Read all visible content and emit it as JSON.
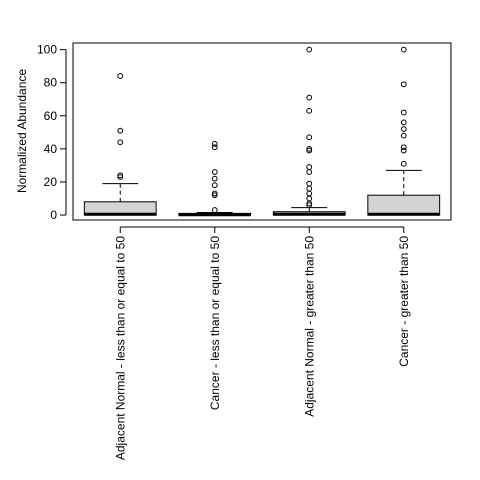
{
  "chart_data": {
    "type": "boxplot",
    "title": "",
    "xlabel": "",
    "ylabel": "Normalized Abundance",
    "ylim": [
      -3,
      104
    ],
    "yticks": [
      0,
      20,
      40,
      60,
      80,
      100
    ],
    "grid": false,
    "categories": [
      "Adjacent Normal - less than or equal to 50",
      "Cancer - less than or equal to 50",
      "Adjacent Normal - greater than 50",
      "Cancer - greater than 50"
    ],
    "boxes": [
      {
        "min": 0,
        "q1": 0,
        "median": 0.5,
        "q3": 8,
        "max": 19,
        "outliers": [
          84,
          51,
          44,
          24,
          23
        ]
      },
      {
        "min": 0,
        "q1": 0,
        "median": 0.2,
        "q3": 1,
        "max": 1.5,
        "outliers": [
          43,
          41,
          26,
          22,
          18,
          13,
          12,
          3
        ]
      },
      {
        "min": 0,
        "q1": 0,
        "median": 0.5,
        "q3": 2,
        "max": 4.5,
        "outliers": [
          100,
          71,
          63,
          47,
          40,
          39,
          29,
          26,
          19,
          16,
          13,
          10,
          7,
          6
        ]
      },
      {
        "min": 0,
        "q1": 0,
        "median": 0.5,
        "q3": 12,
        "max": 27,
        "outliers": [
          100,
          79,
          62,
          56,
          52,
          48,
          41,
          39,
          31
        ]
      }
    ]
  }
}
